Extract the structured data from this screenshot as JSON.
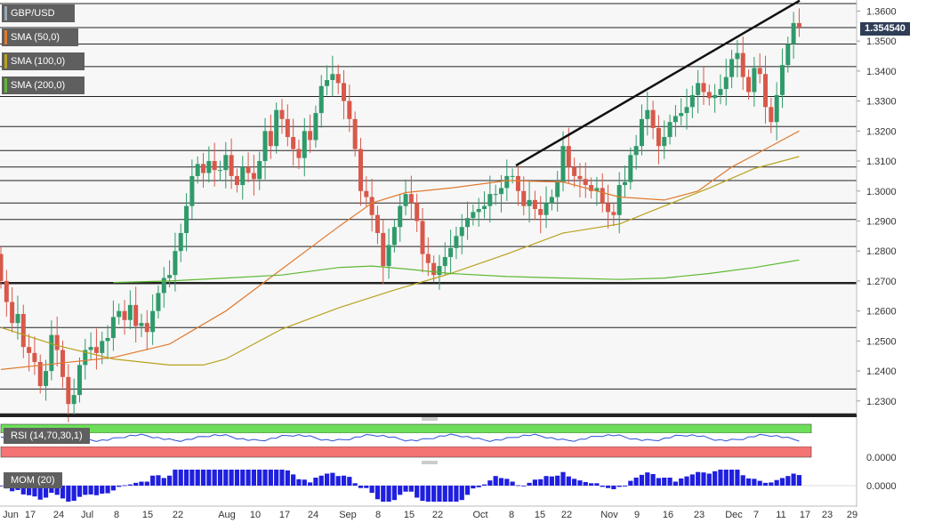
{
  "chart_data": {
    "type": "candlestick",
    "symbol": "GBP/USD",
    "last_price": "1.354540",
    "y_axis": {
      "range": [
        1.2255,
        1.3625
      ],
      "ticks": [
        "1.2300",
        "1.2400",
        "1.2500",
        "1.2600",
        "1.2700",
        "1.2800",
        "1.2900",
        "1.3000",
        "1.3100",
        "1.3200",
        "1.3300",
        "1.3400",
        "1.3500",
        "1.3600"
      ]
    },
    "x_axis": {
      "labels": [
        "Jun",
        "17",
        "24",
        "Jul",
        "8",
        "15",
        "22",
        "Aug",
        "10",
        "17",
        "24",
        "Sep",
        "8",
        "15",
        "22",
        "Oct",
        "8",
        "15",
        "22",
        "Nov",
        "9",
        "16",
        "23",
        "Dec",
        "7",
        "11",
        "17",
        "23",
        "29"
      ]
    },
    "indicators": [
      {
        "name": "SMA (50,0)",
        "color": "#e07a2e"
      },
      {
        "name": "SMA (100,0)",
        "color": "#b8a21e"
      },
      {
        "name": "SMA (200,0)",
        "color": "#5fb832"
      }
    ],
    "horizontal_levels": [
      1.2255,
      1.234,
      1.2545,
      1.2693,
      1.2815,
      1.2905,
      1.296,
      1.3035,
      1.308,
      1.3135,
      1.3215,
      1.3315,
      1.3415,
      1.349,
      1.3545,
      1.3625
    ],
    "support_level": 1.2693,
    "trendline": {
      "from": [
        "2020-10-08",
        1.3085
      ],
      "to": [
        "2020-12-17",
        1.3635
      ]
    },
    "candles_note": "daily OHLC, approx. 2020-06-11 to 2020-12-18",
    "sub_panels": [
      {
        "name": "RSI (14,70,30,1)",
        "y_ticks": [
          "0.0000"
        ]
      },
      {
        "name": "MOM (20)",
        "y_ticks": [
          "0.0000"
        ]
      }
    ]
  }
}
